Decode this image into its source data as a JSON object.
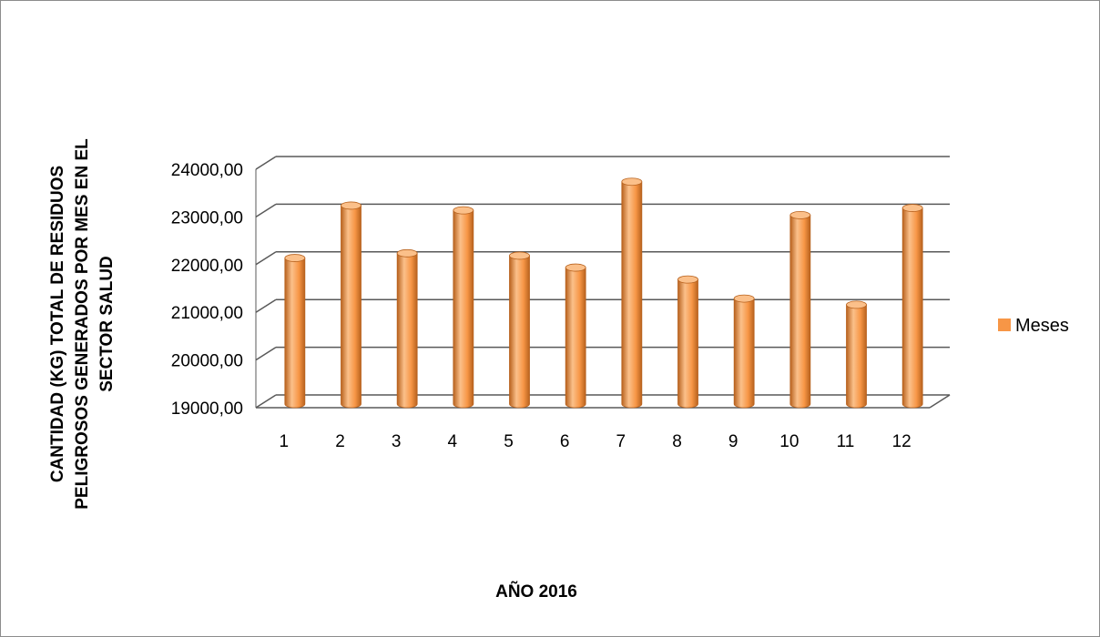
{
  "chart_data": {
    "type": "bar",
    "style": "3d-cylinder",
    "categories": [
      "1",
      "2",
      "3",
      "4",
      "5",
      "6",
      "7",
      "8",
      "9",
      "10",
      "11",
      "12"
    ],
    "series": [
      {
        "name": "Meses",
        "values": [
          22100,
          23200,
          22200,
          23100,
          22150,
          21900,
          23700,
          21650,
          21250,
          23000,
          21120,
          23150
        ]
      }
    ],
    "title": "",
    "xlabel": "AÑO 2016",
    "ylabel_lines": [
      "CANTIDAD (KG) TOTAL DE RESIDUOS",
      "PELIGROSOS GENERADOS POR MES EN EL",
      "SECTOR SALUD"
    ],
    "ylim": [
      19000,
      24000
    ],
    "yticks": [
      "19000,00",
      "20000,00",
      "21000,00",
      "22000,00",
      "23000,00",
      "24000,00"
    ],
    "grid": true,
    "legend_position": "right",
    "colors": {
      "bar": "#f79646",
      "bar_dark": "#b8621e",
      "bar_light": "#fbc08a",
      "grid": "#595959",
      "legend": "#f79646"
    }
  }
}
